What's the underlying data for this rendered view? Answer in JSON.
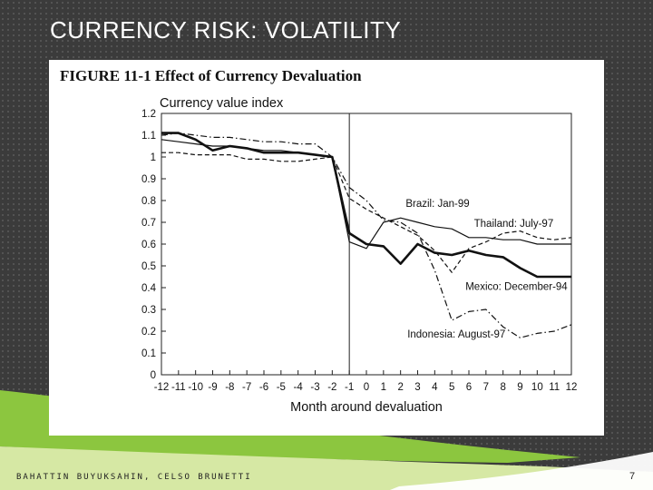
{
  "slide": {
    "title": "CURRENCY RISK: VOLATILITY",
    "footer": "BAHATTIN BUYUKSAHIN, CELSO BRUNETTI",
    "page_number": "7"
  },
  "figure": {
    "caption": "FIGURE 11-1 Effect of Currency Devaluation"
  },
  "colors": {
    "background": "#3b3b3b",
    "accent_green": "#8cc63f",
    "panel": "#ffffff"
  },
  "chart_data": {
    "type": "line",
    "title": "Currency value index",
    "xlabel": "Month around devaluation",
    "ylabel": "Currency value index",
    "x": [
      -12,
      -11,
      -10,
      -9,
      -8,
      -7,
      -6,
      -5,
      -4,
      -3,
      -2,
      -1,
      0,
      1,
      2,
      3,
      4,
      5,
      6,
      7,
      8,
      9,
      10,
      11,
      12
    ],
    "x_ticks": [
      "-12",
      "-11",
      "-10",
      "-9",
      "-8",
      "-7",
      "-6",
      "-5",
      "-4",
      "-3",
      "-2",
      "-1",
      "0",
      "1",
      "2",
      "3",
      "4",
      "5",
      "6",
      "7",
      "8",
      "9",
      "10",
      "11",
      "12"
    ],
    "y_ticks": [
      "0",
      "0.1",
      "0.2",
      "0.3",
      "0.4",
      "0.5",
      "0.6",
      "0.7",
      "0.8",
      "0.9",
      "1",
      "1.1",
      "1.2"
    ],
    "xlim": [
      -12,
      12
    ],
    "ylim": [
      0,
      1.2
    ],
    "vline_x": -1,
    "series": [
      {
        "name": "Mexico: December-94",
        "style": "bold",
        "values": [
          1.11,
          1.11,
          1.08,
          1.03,
          1.05,
          1.04,
          1.02,
          1.02,
          1.02,
          1.01,
          1.0,
          0.65,
          0.6,
          0.59,
          0.51,
          0.6,
          0.56,
          0.55,
          0.57,
          0.55,
          0.54,
          0.49,
          0.45,
          0.45,
          0.45
        ]
      },
      {
        "name": "Brazil: Jan-99",
        "style": "solid",
        "values": [
          1.08,
          1.07,
          1.06,
          1.05,
          1.05,
          1.04,
          1.03,
          1.03,
          1.02,
          1.01,
          1.0,
          0.61,
          0.58,
          0.7,
          0.72,
          0.7,
          0.68,
          0.67,
          0.63,
          0.63,
          0.62,
          0.62,
          0.6,
          0.6,
          0.6
        ]
      },
      {
        "name": "Thailand: July-97",
        "style": "dashed",
        "values": [
          1.02,
          1.02,
          1.01,
          1.01,
          1.01,
          0.99,
          0.99,
          0.98,
          0.98,
          0.99,
          1.0,
          0.81,
          0.76,
          0.72,
          0.68,
          0.64,
          0.57,
          0.47,
          0.58,
          0.61,
          0.65,
          0.66,
          0.63,
          0.62,
          0.63
        ]
      },
      {
        "name": "Indonesia: August-97",
        "style": "dashdot",
        "values": [
          1.1,
          1.11,
          1.1,
          1.09,
          1.09,
          1.08,
          1.07,
          1.07,
          1.06,
          1.06,
          1.0,
          0.86,
          0.8,
          0.71,
          0.7,
          0.65,
          0.48,
          0.25,
          0.29,
          0.3,
          0.22,
          0.17,
          0.19,
          0.2,
          0.23
        ]
      }
    ],
    "annotations": [
      {
        "text": "Brazil: Jan-99",
        "x": 2.3,
        "y": 0.77
      },
      {
        "text": "Thailand: July-97",
        "x": 6.3,
        "y": 0.68
      },
      {
        "text": "Mexico: December-94",
        "x": 5.8,
        "y": 0.39
      },
      {
        "text": "Indonesia: August-97",
        "x": 2.4,
        "y": 0.17
      }
    ]
  }
}
